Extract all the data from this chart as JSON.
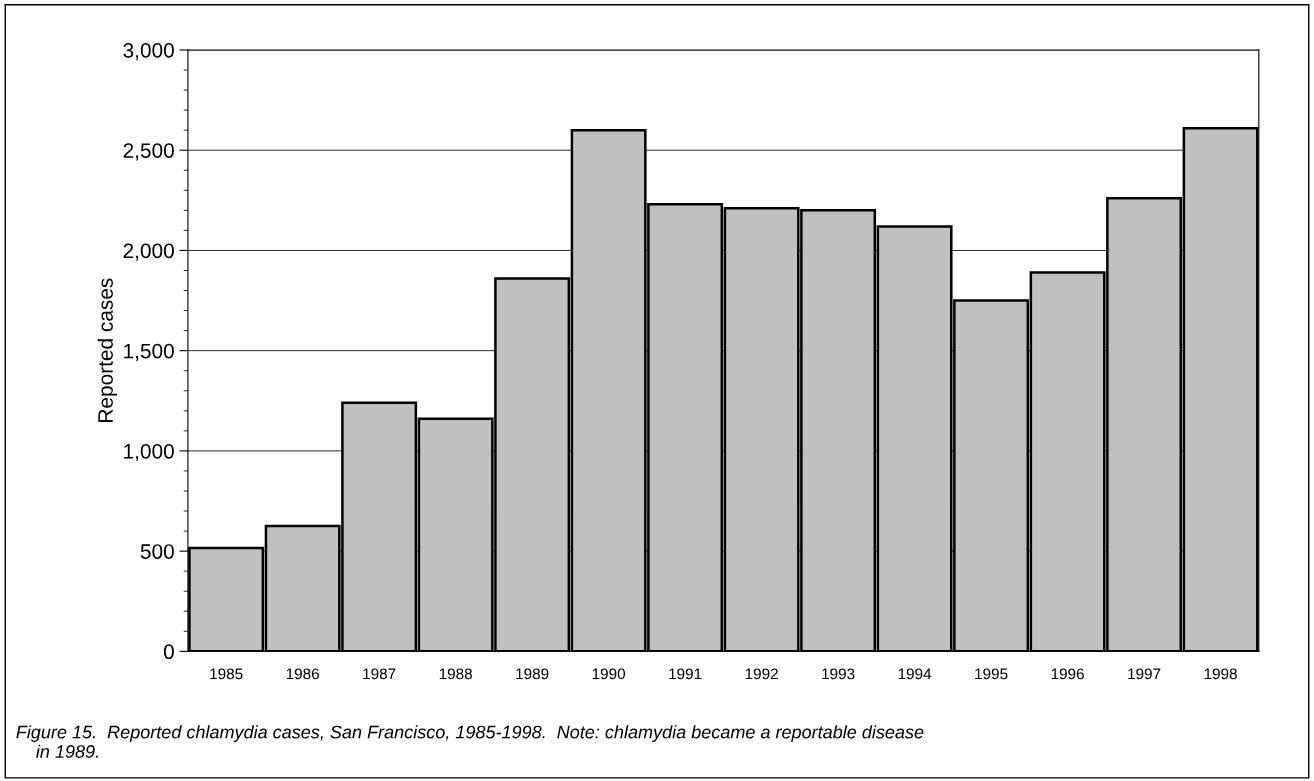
{
  "chart_data": {
    "type": "bar",
    "categories": [
      "1985",
      "1986",
      "1987",
      "1988",
      "1989",
      "1990",
      "1991",
      "1992",
      "1993",
      "1994",
      "1995",
      "1996",
      "1997",
      "1998"
    ],
    "values": [
      515,
      625,
      1240,
      1160,
      1860,
      2600,
      2230,
      2210,
      2200,
      2120,
      1750,
      1890,
      2260,
      2610
    ],
    "color": "#c0c0c0",
    "ylabel": "Reported cases",
    "ylim": [
      0,
      3000
    ],
    "yticks": [
      0,
      {
        "value": 500,
        "label": "500"
      },
      {
        "value": 1000,
        "label": "1,000"
      },
      {
        "value": 1500,
        "label": "1,500"
      },
      {
        "value": 2000,
        "label": "2,000"
      },
      {
        "value": 2500,
        "label": "2,500"
      },
      {
        "value": 3000,
        "label": "3,000"
      }
    ],
    "grid": "y",
    "annotations": [
      "Figure 15.  Reported chlamydia cases, San Francisco, 1985-1998.  Note: chlamydia became a reportable disease\n    in 1989."
    ]
  }
}
